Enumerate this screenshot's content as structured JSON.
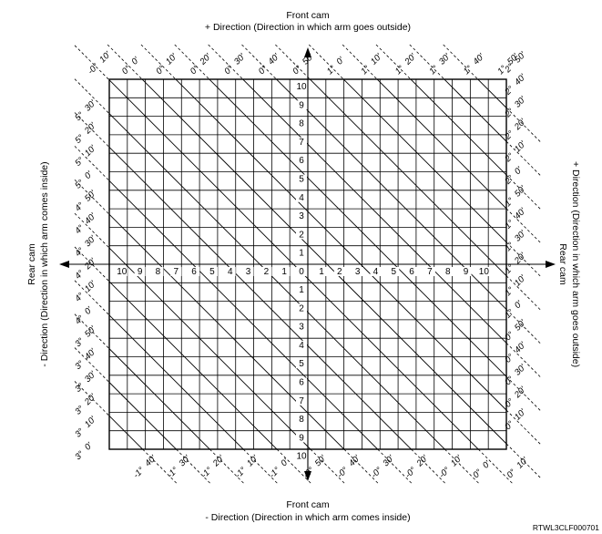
{
  "captions": {
    "top": [
      "Front cam",
      "+ Direction (Direction in which arm goes outside)"
    ],
    "bottom": [
      "Front cam",
      "- Direction (Direction in which arm comes inside)"
    ],
    "left": [
      "Rear cam",
      "- Direction (Direction in which arm comes inside)"
    ],
    "right": [
      "Rear cam",
      "+ Direction (Direction in which arm goes outside)"
    ]
  },
  "figure_code": "RTWL3CLF000701",
  "axis_numbers": {
    "vertical_up": [
      "10",
      "9",
      "8",
      "7",
      "6",
      "5",
      "4",
      "3",
      "2",
      "1",
      "0"
    ],
    "vertical_down": [
      "1",
      "2",
      "3",
      "4",
      "5",
      "6",
      "7",
      "8",
      "9",
      "10"
    ],
    "horizontal_left": [
      "10",
      "9",
      "8",
      "7",
      "6",
      "5",
      "4",
      "3",
      "2",
      "1"
    ],
    "horizontal_right": [
      "1",
      "2",
      "3",
      "4",
      "5",
      "6",
      "7",
      "8",
      "9",
      "10"
    ]
  },
  "angle_labels": {
    "top": [
      [
        "-0°",
        "10'"
      ],
      [
        "0°",
        "0'"
      ],
      [
        "0°",
        "10'"
      ],
      [
        "0°",
        "20'"
      ],
      [
        "0°",
        "30'"
      ],
      [
        "0°",
        "40'"
      ],
      [
        "0°",
        "50'"
      ],
      [
        "1°",
        "0'"
      ],
      [
        "1°",
        "10'"
      ],
      [
        "1°",
        "20'"
      ],
      [
        "1°",
        "30'"
      ],
      [
        "1°",
        "40'"
      ],
      [
        "1°",
        "50'"
      ]
    ],
    "right": [
      [
        "2°",
        "50'"
      ],
      [
        "2°",
        "40'"
      ],
      [
        "2°",
        "30'"
      ],
      [
        "2°",
        "20'"
      ],
      [
        "2°",
        "10'"
      ],
      [
        "2°",
        "0'"
      ],
      [
        "1°",
        "50'"
      ],
      [
        "1°",
        "40'"
      ],
      [
        "1°",
        "30'"
      ],
      [
        "1°",
        "20'"
      ],
      [
        "1°",
        "10'"
      ],
      [
        "1°",
        "0'"
      ],
      [
        "0°",
        "50'"
      ],
      [
        "0°",
        "40'"
      ],
      [
        "0°",
        "30'"
      ],
      [
        "0°",
        "20'"
      ],
      [
        "0°",
        "10'"
      ]
    ],
    "bottom": [
      [
        "-1°",
        "40'"
      ],
      [
        "-1°",
        "30'"
      ],
      [
        "-1°",
        "20'"
      ],
      [
        "-1°",
        "10'"
      ],
      [
        "-1°",
        "0'"
      ],
      [
        "-0°",
        "50'"
      ],
      [
        "-0°",
        "40'"
      ],
      [
        "-0°",
        "30'"
      ],
      [
        "-0°",
        "20'"
      ],
      [
        "-0°",
        "10'"
      ],
      [
        "0°",
        "0'"
      ],
      [
        "0°",
        "10'"
      ]
    ],
    "left": [
      [
        "5°",
        "30'"
      ],
      [
        "5°",
        "20'"
      ],
      [
        "5°",
        "10'"
      ],
      [
        "5°",
        "0'"
      ],
      [
        "4°",
        "50'"
      ],
      [
        "4°",
        "40'"
      ],
      [
        "4°",
        "30'"
      ],
      [
        "4°",
        "20'"
      ],
      [
        "4°",
        "10'"
      ],
      [
        "4°",
        "0'"
      ],
      [
        "3°",
        "50'"
      ],
      [
        "3°",
        "40'"
      ],
      [
        "3°",
        "30'"
      ],
      [
        "3°",
        "20'"
      ],
      [
        "3°",
        "10'"
      ],
      [
        "3°",
        "0'"
      ]
    ]
  }
}
